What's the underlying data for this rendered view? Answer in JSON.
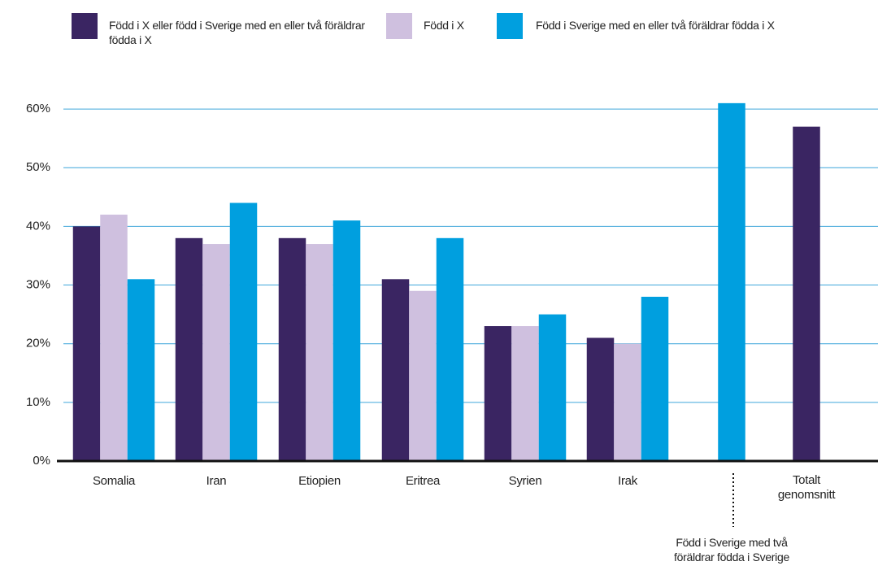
{
  "chart_data": {
    "type": "bar",
    "categories": [
      "Somalia",
      "Iran",
      "Etiopien",
      "Eritrea",
      "Syrien",
      "Irak",
      "Född i Sverige med två föräldrar födda i Sverige",
      "Totalt genomsnitt"
    ],
    "series": [
      {
        "name": "Född i X eller född i Sverige med en eller två föräldrar födda i X",
        "color": "#3a2562",
        "values": [
          40,
          38,
          38,
          31,
          23,
          21,
          null,
          57
        ]
      },
      {
        "name": "Född i X",
        "color": "#cfc0df",
        "values": [
          42,
          37,
          37,
          29,
          23,
          20,
          null,
          null
        ]
      },
      {
        "name": "Född i Sverige med en eller två föräldrar födda i X",
        "color": "#009fdf",
        "values": [
          31,
          44,
          41,
          38,
          25,
          28,
          61,
          null
        ]
      }
    ],
    "ylim": [
      0,
      65
    ],
    "yticks": [
      {
        "value": 0,
        "label": "0%"
      },
      {
        "value": 10,
        "label": "10%"
      },
      {
        "value": 20,
        "label": "20%"
      },
      {
        "value": 30,
        "label": "30%"
      },
      {
        "value": 40,
        "label": "40%"
      },
      {
        "value": 50,
        "label": "50%"
      },
      {
        "value": 60,
        "label": "60%"
      }
    ],
    "grid": true
  }
}
